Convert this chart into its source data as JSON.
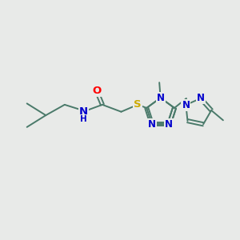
{
  "bg_color": "#e8eae8",
  "bond_color": "#4a7a6a",
  "bond_width": 1.4,
  "atom_colors": {
    "O": "#ff0000",
    "N": "#0000cc",
    "S": "#ccaa00",
    "C": "#4a7a6a"
  },
  "font_size": 8.5,
  "fig_size": [
    3.0,
    3.0
  ],
  "dpi": 100
}
